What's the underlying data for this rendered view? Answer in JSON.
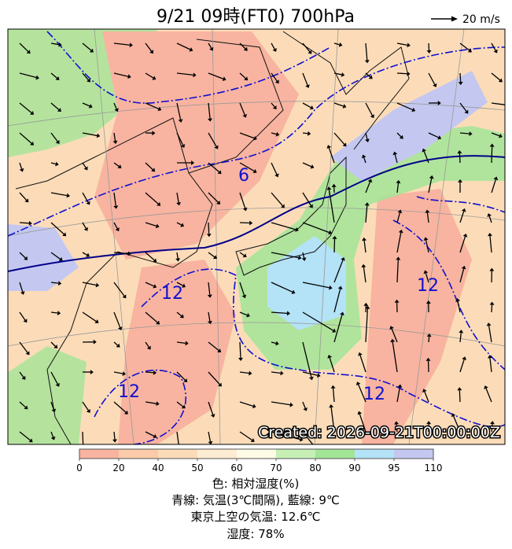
{
  "header": {
    "title": "9/21  09時(FT0)    700hPa",
    "vector_scale": "20 m/s"
  },
  "map": {
    "contour_labels": [
      "6",
      "12",
      "12",
      "12",
      "12"
    ],
    "created": "Created: 2026-09-21T00:00:00Z"
  },
  "colorbar": {
    "ticks": [
      0,
      20,
      40,
      50,
      60,
      70,
      80,
      90,
      95,
      110
    ],
    "colors": [
      "#f8b4a0",
      "#fbcaa8",
      "#fcdcb8",
      "#feecd2",
      "#fdfbe6",
      "#c6efb6",
      "#a2e596",
      "#b4e2f6",
      "#c4c8f0"
    ]
  },
  "caption": [
    "色: 相対湿度(%)",
    "青線: 気温(3℃間隔), 藍線: 9℃",
    "東京上空の気温: 12.6℃",
    "湿度: 78%"
  ]
}
